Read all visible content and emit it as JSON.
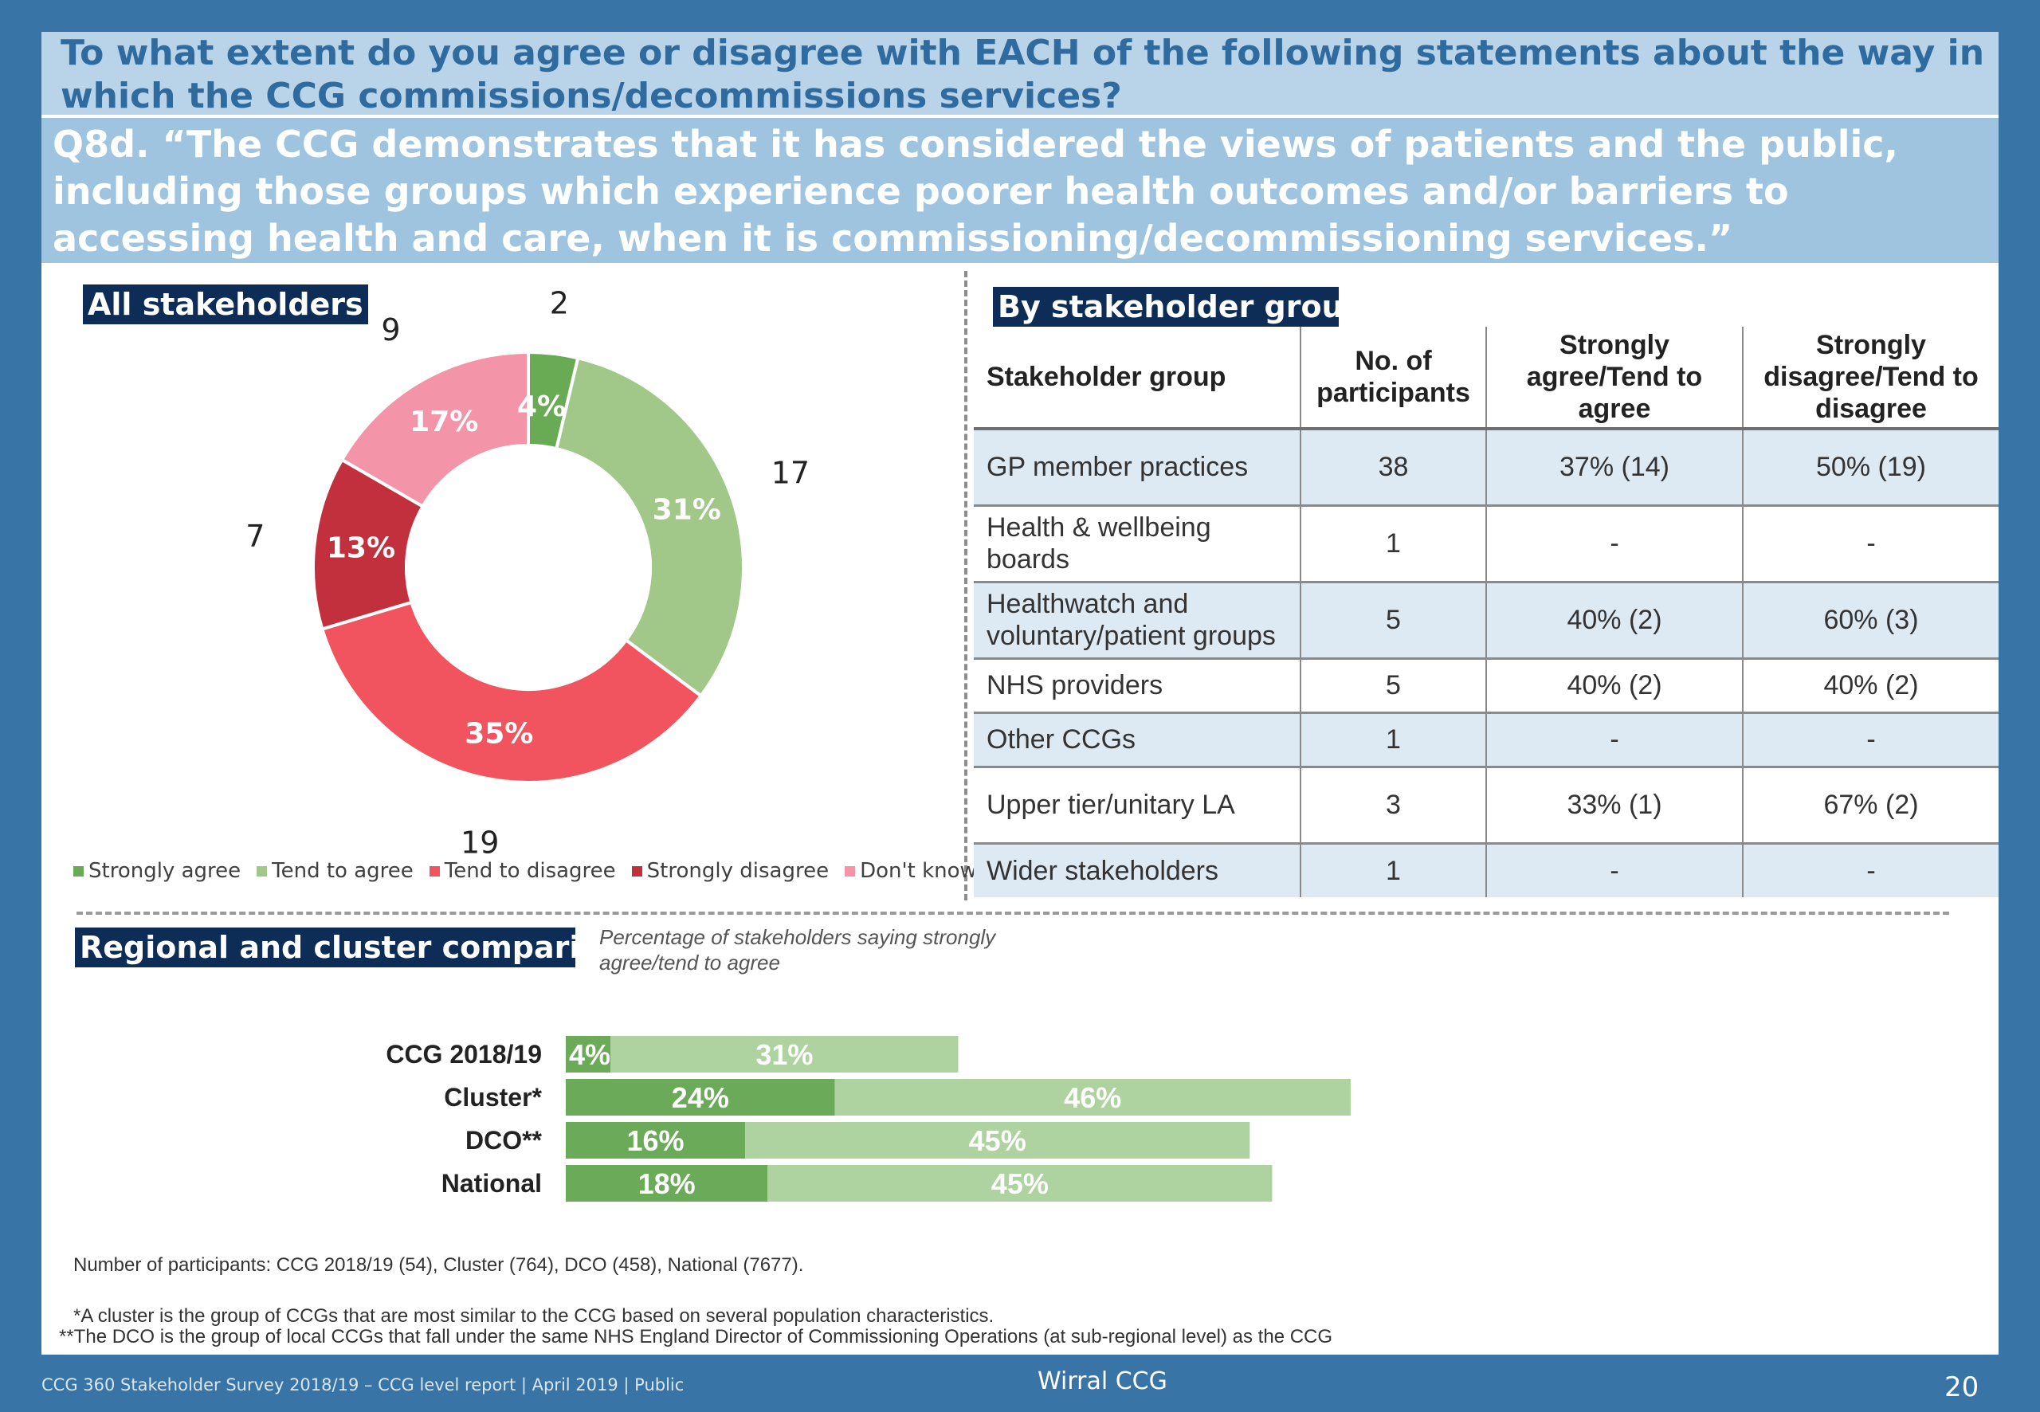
{
  "header": {
    "question": "To what extent do you agree or disagree with EACH of the following statements about the way in which the CCG commissions/decommissions services?",
    "statement": "Q8d. “The CCG demonstrates that it has considered the views of patients and the public, including those groups which experience poorer health outcomes and/or barriers to accessing health and care, when it is commissioning/decommissioning services.”"
  },
  "sections": {
    "all": "All stakeholders",
    "group": "By stakeholder group",
    "regional": "Regional and cluster comparisons"
  },
  "colors": {
    "strongly_agree": "#69aa55",
    "tend_agree": "#a1c889",
    "tend_disagree": "#f2545f",
    "strongly_disagree": "#c3303d",
    "dont_know": "#f394a8",
    "bar_dark": "#6aaa59",
    "bar_light": "#aed3a0",
    "navy": "#0d2d57"
  },
  "table": {
    "headers": [
      "Stakeholder group",
      "No. of participants",
      "Strongly agree/Tend to agree",
      "Strongly disagree/Tend to disagree"
    ],
    "rows": [
      [
        "GP member practices",
        "38",
        "37% (14)",
        "50% (19)"
      ],
      [
        "Health & wellbeing boards",
        "1",
        "-",
        "-"
      ],
      [
        "Healthwatch and voluntary/patient groups",
        "5",
        "40% (2)",
        "60% (3)"
      ],
      [
        "NHS providers",
        "5",
        "40% (2)",
        "40% (2)"
      ],
      [
        "Other CCGs",
        "1",
        "-",
        "-"
      ],
      [
        "Upper tier/unitary LA",
        "3",
        "33% (1)",
        "67% (2)"
      ],
      [
        "Wider stakeholders",
        "1",
        "-",
        "-"
      ]
    ]
  },
  "bar_note": "Percentage of stakeholders saying strongly agree/tend to agree",
  "footnotes": {
    "participants": "Number of participants: CCG 2018/19 (54), Cluster (764), DCO (458), National (7677).",
    "cluster": "*A cluster is the group of CCGs that are most similar to the CCG based on several population characteristics.",
    "dco": "**The DCO is the group of local CCGs that fall under the same NHS England Director of Commissioning Operations (at sub-regional level) as the CCG"
  },
  "footer": {
    "left": "CCG 360 Stakeholder Survey 2018/19 – CCG level report |  April 2019 | Public",
    "center": "Wirral CCG",
    "page": "20"
  },
  "chart_data": [
    {
      "type": "pie",
      "variant": "donut",
      "title": "All stakeholders",
      "categories": [
        "Strongly agree",
        "Tend to agree",
        "Tend to disagree",
        "Strongly disagree",
        "Don't know"
      ],
      "counts": [
        2,
        17,
        19,
        7,
        9
      ],
      "percent_labels": [
        "4%",
        "31%",
        "35%",
        "13%",
        "17%"
      ],
      "legend_position": "bottom"
    },
    {
      "type": "bar",
      "orientation": "horizontal",
      "stacked": true,
      "categories": [
        "CCG 2018/19",
        "Cluster*",
        "DCO**",
        "National"
      ],
      "series": [
        {
          "name": "Strongly agree",
          "values": [
            4,
            24,
            16,
            18
          ]
        },
        {
          "name": "Tend to agree",
          "values": [
            31,
            46,
            45,
            45
          ]
        }
      ],
      "unit": "%"
    }
  ]
}
